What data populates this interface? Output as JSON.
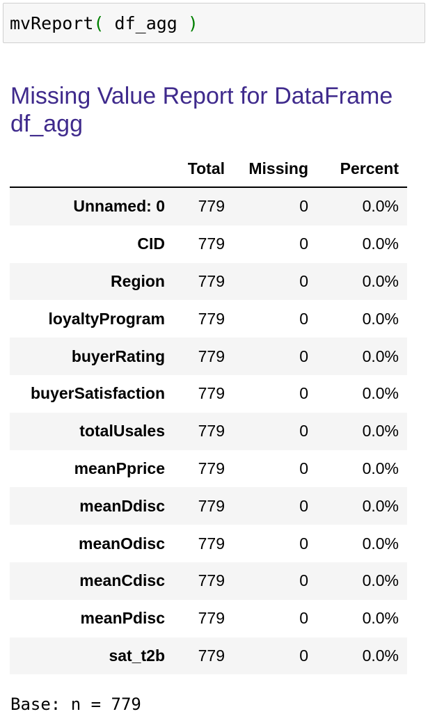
{
  "code_cell": {
    "func": "mvReport",
    "open_paren": "(",
    "arg": " df_agg ",
    "close_paren": ")"
  },
  "report": {
    "title": "Missing Value Report for DataFrame df_agg",
    "columns": [
      "",
      "Total",
      "Missing",
      "Percent"
    ],
    "rows": [
      {
        "name": "Unnamed: 0",
        "total": "779",
        "missing": "0",
        "percent": "0.0%"
      },
      {
        "name": "CID",
        "total": "779",
        "missing": "0",
        "percent": "0.0%"
      },
      {
        "name": "Region",
        "total": "779",
        "missing": "0",
        "percent": "0.0%"
      },
      {
        "name": "loyaltyProgram",
        "total": "779",
        "missing": "0",
        "percent": "0.0%"
      },
      {
        "name": "buyerRating",
        "total": "779",
        "missing": "0",
        "percent": "0.0%"
      },
      {
        "name": "buyerSatisfaction",
        "total": "779",
        "missing": "0",
        "percent": "0.0%"
      },
      {
        "name": "totalUsales",
        "total": "779",
        "missing": "0",
        "percent": "0.0%"
      },
      {
        "name": "meanPprice",
        "total": "779",
        "missing": "0",
        "percent": "0.0%"
      },
      {
        "name": "meanDdisc",
        "total": "779",
        "missing": "0",
        "percent": "0.0%"
      },
      {
        "name": "meanOdisc",
        "total": "779",
        "missing": "0",
        "percent": "0.0%"
      },
      {
        "name": "meanCdisc",
        "total": "779",
        "missing": "0",
        "percent": "0.0%"
      },
      {
        "name": "meanPdisc",
        "total": "779",
        "missing": "0",
        "percent": "0.0%"
      },
      {
        "name": "sat_t2b",
        "total": "779",
        "missing": "0",
        "percent": "0.0%"
      }
    ],
    "footer": "Base: n = 779"
  },
  "colors": {
    "heading": "#3f2a8c",
    "paren": "#008000",
    "stripe": "#f5f5f5"
  }
}
